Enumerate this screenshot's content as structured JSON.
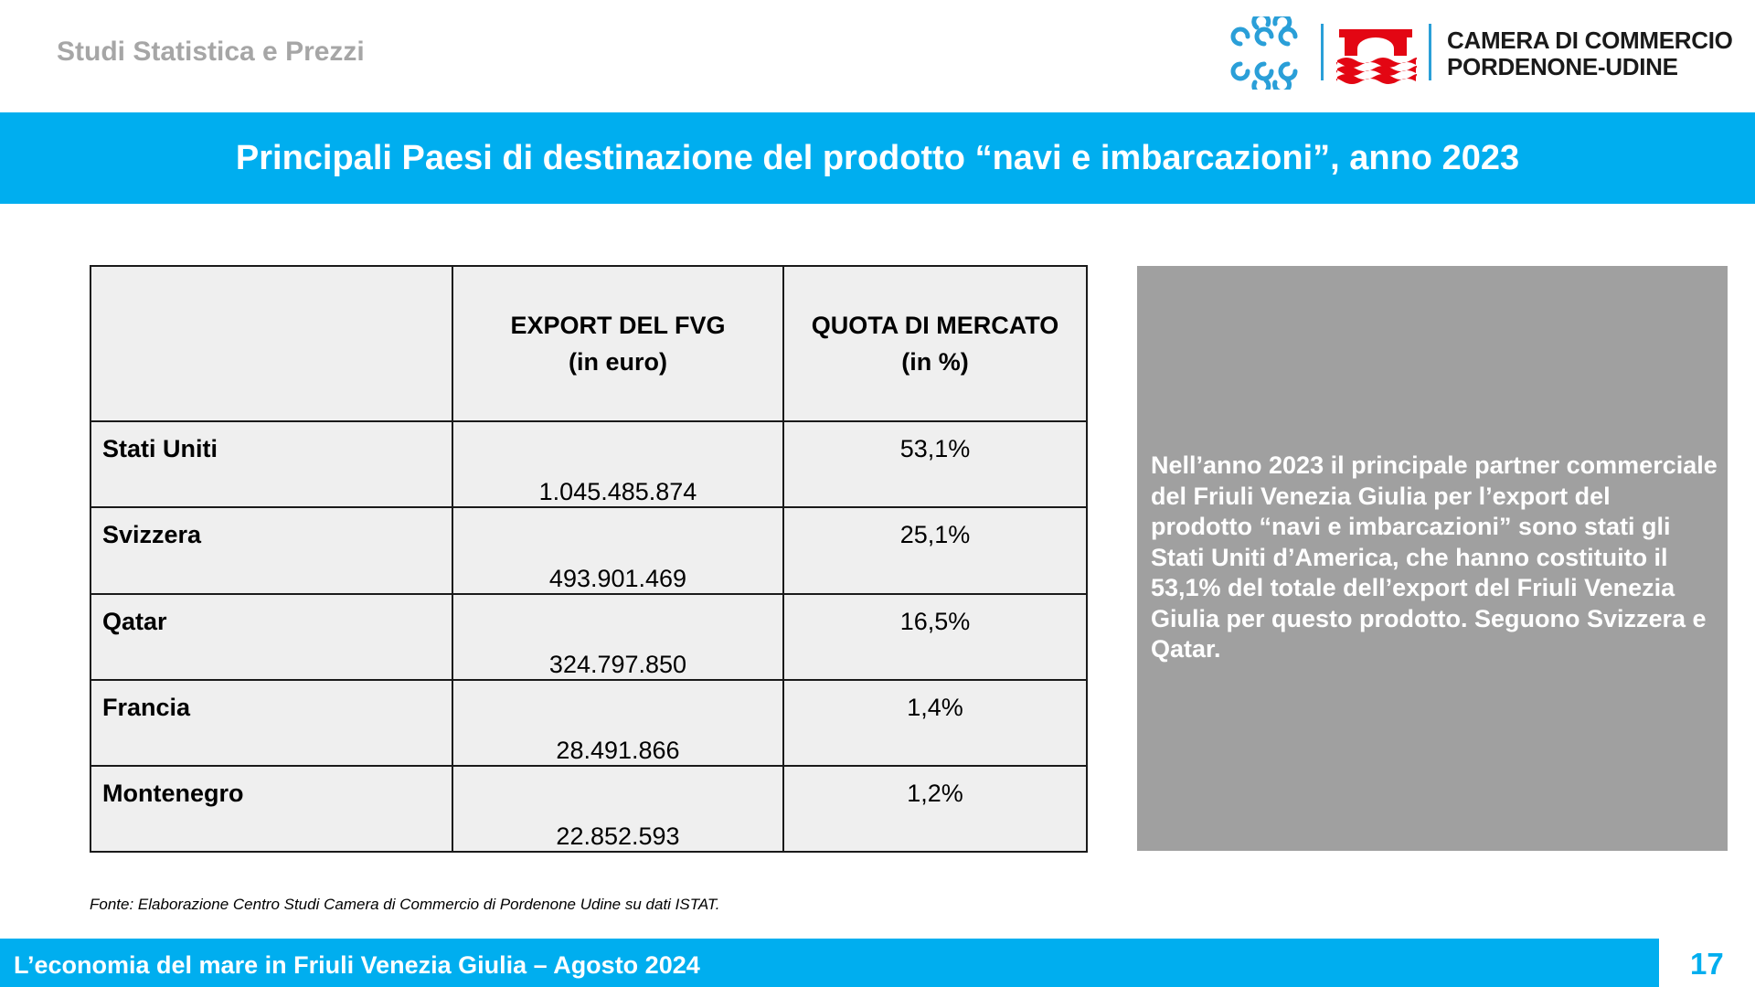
{
  "header": {
    "section_label": "Studi Statistica e Prezzi",
    "org_name_line1": "CAMERA DI COMMERCIO",
    "org_name_line2": "PORDENONE-UDINE"
  },
  "title": "Principali Paesi di destinazione del prodotto “navi e imbarcazioni”, anno 2023",
  "table": {
    "columns": [
      {
        "line1": "",
        "line2": ""
      },
      {
        "line1": "EXPORT DEL FVG",
        "line2": "(in euro)"
      },
      {
        "line1": "QUOTA DI MERCATO",
        "line2": "(in %)"
      }
    ],
    "rows": [
      {
        "country": "Stati Uniti",
        "export": "1.045.485.874",
        "quota": "53,1%"
      },
      {
        "country": "Svizzera",
        "export": "493.901.469",
        "quota": "25,1%"
      },
      {
        "country": "Qatar",
        "export": "324.797.850",
        "quota": "16,5%"
      },
      {
        "country": "Francia",
        "export": "28.491.866",
        "quota": "1,4%"
      },
      {
        "country": "Montenegro",
        "export": "22.852.593",
        "quota": "1,2%"
      }
    ]
  },
  "panel_text": "Nell’anno 2023 il principale partner commerciale del Friuli Venezia Giulia per l’export del prodotto “navi e imbarcazioni” sono stati gli Stati Uniti d’America, che hanno costituito il 53,1% del totale dell’export del Friuli Venezia Giulia per questo prodotto. Seguono Svizzera e Qatar.",
  "source": "Fonte: Elaborazione Centro Studi Camera di Commercio di Pordenone Udine su dati ISTAT.",
  "footer": {
    "text": "L’economia del mare in Friuli Venezia Giulia – Agosto 2024",
    "page_number": "17"
  },
  "colors": {
    "accent": "#00aeef",
    "panel": "#a0a0a0",
    "logo_red": "#e30613",
    "table_bg": "#efefef"
  },
  "icons": [
    "chamber-of-commerce-logo-icon",
    "pordenone-udine-emblem-icon"
  ]
}
